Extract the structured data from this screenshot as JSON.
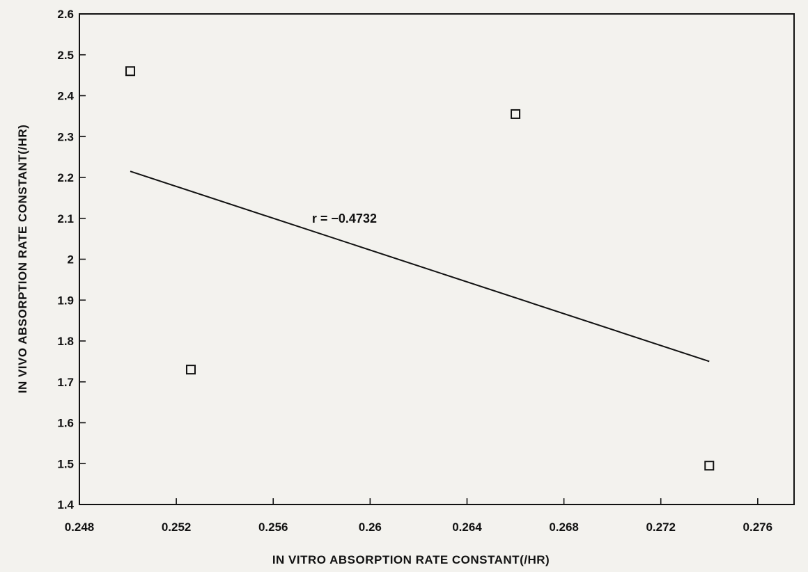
{
  "chart_data": {
    "type": "scatter",
    "title": "",
    "xlabel": "IN VITRO ABSORPTION RATE CONSTANT(/HR)",
    "ylabel": "IN VIVO ABSORPTION RATE CONSTANT(/HR)",
    "xlim": [
      0.248,
      0.2775
    ],
    "ylim": [
      1.4,
      2.6
    ],
    "x_ticks": [
      0.248,
      0.252,
      0.256,
      0.26,
      0.264,
      0.268,
      0.272,
      0.276
    ],
    "x_tick_labels": [
      "0.248",
      "0.252",
      "0.256",
      "0.26",
      "0.264",
      "0.268",
      "0.272",
      "0.276"
    ],
    "y_ticks": [
      1.4,
      1.5,
      1.6,
      1.7,
      1.8,
      1.9,
      2,
      2.1,
      2.2,
      2.3,
      2.4,
      2.5,
      2.6
    ],
    "y_tick_labels": [
      "1.4",
      "1.5",
      "1.6",
      "1.7",
      "1.8",
      "1.9",
      "2",
      "2.1",
      "2.2",
      "2.3",
      "2.4",
      "2.5",
      "2.6"
    ],
    "grid": false,
    "marker": "open-square",
    "points": [
      {
        "x": 0.2501,
        "y": 2.46
      },
      {
        "x": 0.2526,
        "y": 1.73
      },
      {
        "x": 0.266,
        "y": 2.355
      },
      {
        "x": 0.274,
        "y": 1.495
      }
    ],
    "fit_line": {
      "x": [
        0.2501,
        0.274
      ],
      "y": [
        2.215,
        1.75
      ]
    },
    "annotations": [
      {
        "text": "r = −0.4732",
        "x": 0.2576,
        "y": 2.1
      }
    ]
  }
}
